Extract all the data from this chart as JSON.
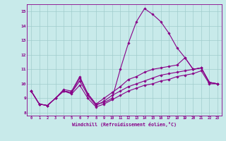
{
  "xlabel": "Windchill (Refroidissement éolien,°C)",
  "bg_color": "#c8eaea",
  "line_color": "#880088",
  "grid_color": "#a0cccc",
  "xlim": [
    -0.5,
    23.5
  ],
  "ylim": [
    7.8,
    15.5
  ],
  "yticks": [
    8,
    9,
    10,
    11,
    12,
    13,
    14,
    15
  ],
  "xticks": [
    0,
    1,
    2,
    3,
    4,
    5,
    6,
    7,
    8,
    9,
    10,
    11,
    12,
    13,
    14,
    15,
    16,
    17,
    18,
    19,
    20,
    21,
    22,
    23
  ],
  "line1_x": [
    0,
    1,
    2,
    3,
    4,
    5,
    6,
    7,
    8,
    9,
    10,
    11,
    12,
    13,
    14,
    15,
    16,
    17,
    18,
    19,
    20,
    21,
    22,
    23
  ],
  "line1_y": [
    9.5,
    8.6,
    8.5,
    9.0,
    9.6,
    9.5,
    10.5,
    9.3,
    8.6,
    8.7,
    9.0,
    11.0,
    12.8,
    14.3,
    15.2,
    14.8,
    14.3,
    13.5,
    12.5,
    11.8,
    11.0,
    11.1,
    10.1,
    10.0
  ],
  "line2_x": [
    0,
    1,
    2,
    3,
    4,
    5,
    6,
    7,
    8,
    9,
    10,
    11,
    12,
    13,
    14,
    15,
    16,
    17,
    18,
    19,
    20,
    21,
    22,
    23
  ],
  "line2_y": [
    9.5,
    8.6,
    8.5,
    9.0,
    9.5,
    9.4,
    10.4,
    9.3,
    8.6,
    9.0,
    9.4,
    9.8,
    10.3,
    10.5,
    10.8,
    11.0,
    11.1,
    11.2,
    11.3,
    11.8,
    11.0,
    11.1,
    10.1,
    10.0
  ],
  "line3_x": [
    0,
    1,
    2,
    3,
    4,
    5,
    6,
    7,
    8,
    9,
    10,
    11,
    12,
    13,
    14,
    15,
    16,
    17,
    18,
    19,
    20,
    21,
    22,
    23
  ],
  "line3_y": [
    9.5,
    8.6,
    8.5,
    9.0,
    9.5,
    9.4,
    10.2,
    9.2,
    8.5,
    8.8,
    9.2,
    9.5,
    9.8,
    10.0,
    10.2,
    10.4,
    10.6,
    10.7,
    10.8,
    10.9,
    11.0,
    11.1,
    10.1,
    10.0
  ],
  "line4_x": [
    0,
    1,
    2,
    3,
    4,
    5,
    6,
    7,
    8,
    9,
    10,
    11,
    12,
    13,
    14,
    15,
    16,
    17,
    18,
    19,
    20,
    21,
    22,
    23
  ],
  "line4_y": [
    9.5,
    8.6,
    8.5,
    9.0,
    9.5,
    9.3,
    9.9,
    9.0,
    8.4,
    8.6,
    8.9,
    9.2,
    9.5,
    9.7,
    9.9,
    10.0,
    10.2,
    10.3,
    10.5,
    10.6,
    10.7,
    10.9,
    10.0,
    10.0
  ]
}
